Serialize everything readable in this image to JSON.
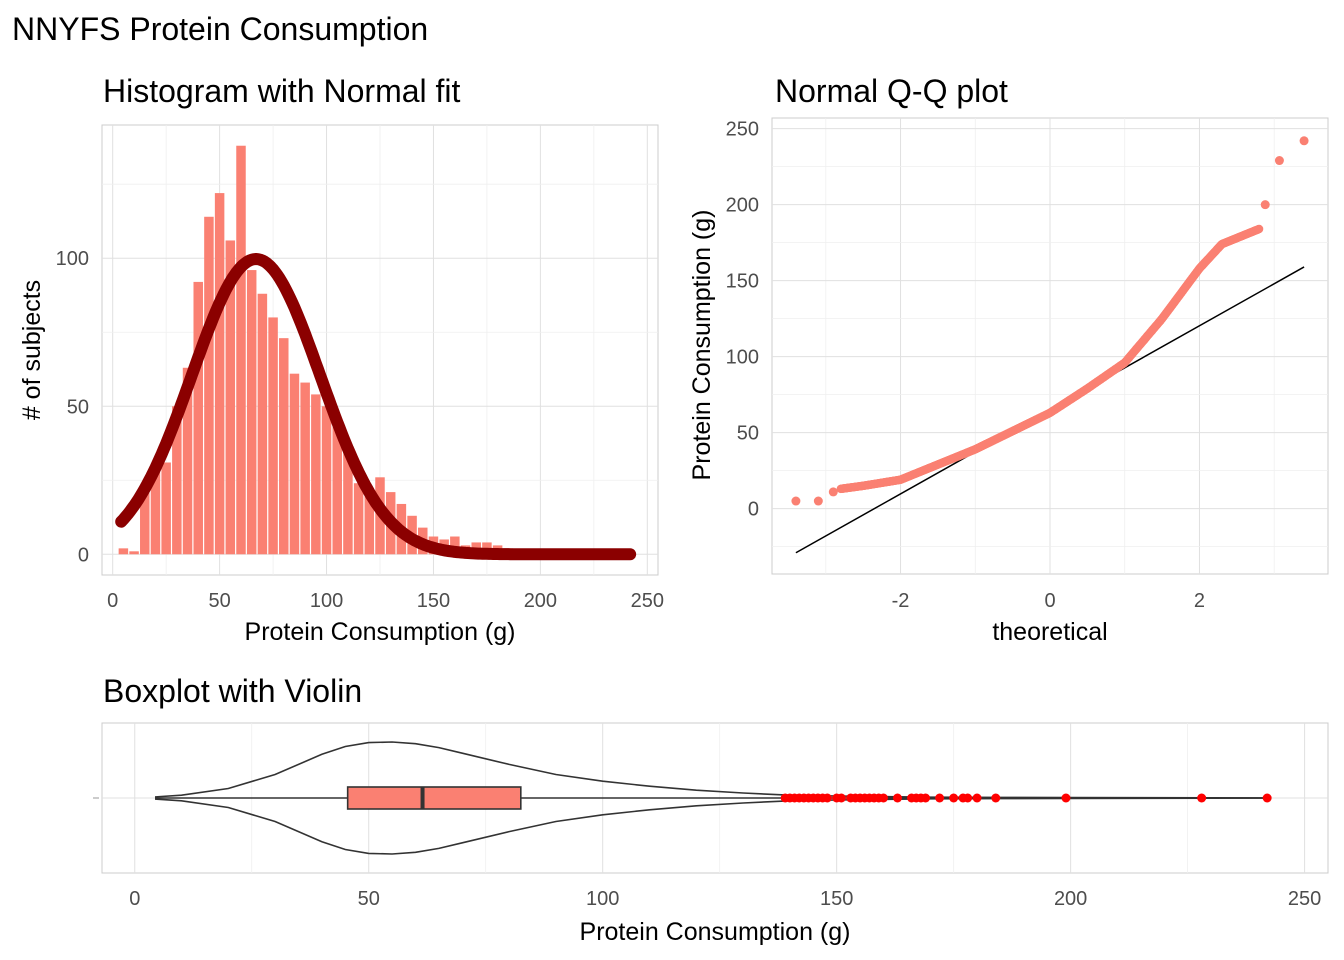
{
  "page_title": "NNYFS Protein Consumption",
  "colors": {
    "bar": "#fa8072",
    "fit": "#8b0000",
    "qq_point": "#fa8072",
    "qq_line": "#000000",
    "outlier": "#ff0000",
    "grid": "#e0e0e0",
    "tick_text": "#4d4d4d"
  },
  "chart_data": [
    {
      "type": "bar",
      "title": "Histogram with Normal fit",
      "xlabel": "Protein Consumption (g)",
      "ylabel": "# of subjects",
      "xlim": [
        -5,
        255
      ],
      "ylim": [
        -7,
        145
      ],
      "xticks": [
        "0",
        "50",
        "100",
        "150",
        "200",
        "250"
      ],
      "yticks": [
        "0",
        "50",
        "100"
      ],
      "bin_width": 5,
      "bin_centers": [
        5,
        10,
        15,
        20,
        25,
        30,
        35,
        40,
        45,
        50,
        55,
        60,
        65,
        70,
        75,
        80,
        85,
        90,
        95,
        100,
        105,
        110,
        115,
        120,
        125,
        130,
        135,
        140,
        145,
        150,
        155,
        160,
        165,
        170,
        175,
        180,
        185,
        190,
        195,
        200,
        205,
        210,
        215,
        220,
        225,
        230,
        235,
        240
      ],
      "counts": [
        2,
        1,
        22,
        28,
        31,
        50,
        63,
        92,
        114,
        122,
        106,
        138,
        96,
        88,
        80,
        73,
        61,
        58,
        54,
        50,
        46,
        37,
        24,
        21,
        26,
        21,
        17,
        13,
        9,
        6,
        5,
        6,
        3,
        4,
        4,
        3,
        2,
        1,
        1,
        0,
        0,
        0,
        0,
        0,
        0,
        1,
        0,
        1
      ],
      "normal_fit": {
        "mean": 67,
        "sd": 30,
        "n": 1500,
        "bin_width": 5,
        "x_range": [
          4,
          242
        ]
      }
    },
    {
      "type": "scatter",
      "title": "Normal Q-Q plot",
      "xlabel": "theoretical",
      "ylabel": "Protein Consumption (g)",
      "xlim": [
        -3.72,
        3.72
      ],
      "ylim": [
        -43,
        257
      ],
      "xticks": [
        "-2",
        "0",
        "2"
      ],
      "yticks": [
        "0",
        "50",
        "100",
        "150",
        "200",
        "250"
      ],
      "reference_line": {
        "from": [
          -3.4,
          -29
        ],
        "to": [
          3.4,
          159
        ]
      },
      "quantile_curve": [
        [
          -2.8,
          13
        ],
        [
          -2.5,
          15
        ],
        [
          -2,
          19
        ],
        [
          -1.5,
          29
        ],
        [
          -1,
          39
        ],
        [
          -0.5,
          51
        ],
        [
          0,
          63
        ],
        [
          0.5,
          79
        ],
        [
          1,
          96
        ],
        [
          1.5,
          125
        ],
        [
          2,
          158
        ],
        [
          2.3,
          174
        ],
        [
          2.6,
          180
        ],
        [
          2.8,
          184
        ]
      ],
      "extreme_points": [
        [
          -3.4,
          5
        ],
        [
          -3.1,
          5
        ],
        [
          -2.9,
          11
        ],
        [
          2.88,
          200
        ],
        [
          3.07,
          229
        ],
        [
          3.4,
          242
        ]
      ]
    },
    {
      "type": "box",
      "title": "Boxplot with Violin",
      "xlabel": "Protein Consumption (g)",
      "xlim": [
        -7,
        255
      ],
      "xticks": [
        "0",
        "50",
        "100",
        "150",
        "200",
        "250"
      ],
      "box": {
        "min": 4.5,
        "q1": 45.5,
        "median": 61.5,
        "q3": 82.5,
        "max": 242
      },
      "violin": [
        [
          4.5,
          0.02
        ],
        [
          10,
          0.05
        ],
        [
          20,
          0.17
        ],
        [
          30,
          0.42
        ],
        [
          40,
          0.78
        ],
        [
          45,
          0.92
        ],
        [
          50,
          0.99
        ],
        [
          55,
          1.0
        ],
        [
          60,
          0.97
        ],
        [
          65,
          0.9
        ],
        [
          70,
          0.8
        ],
        [
          80,
          0.6
        ],
        [
          90,
          0.42
        ],
        [
          100,
          0.3
        ],
        [
          110,
          0.21
        ],
        [
          120,
          0.14
        ],
        [
          130,
          0.09
        ],
        [
          140,
          0.05
        ],
        [
          150,
          0.035
        ],
        [
          160,
          0.025
        ],
        [
          170,
          0.015
        ],
        [
          185,
          0.01
        ],
        [
          200,
          0.007
        ],
        [
          230,
          0.004
        ],
        [
          242,
          0.002
        ]
      ],
      "outliers": [
        139,
        140,
        141,
        142,
        143,
        144,
        145,
        146,
        147,
        148,
        150,
        151,
        153,
        154,
        155,
        156,
        157,
        158,
        159,
        160,
        163,
        166,
        167,
        168,
        169,
        172,
        175,
        177,
        178,
        180,
        184,
        199,
        228,
        242
      ]
    }
  ]
}
